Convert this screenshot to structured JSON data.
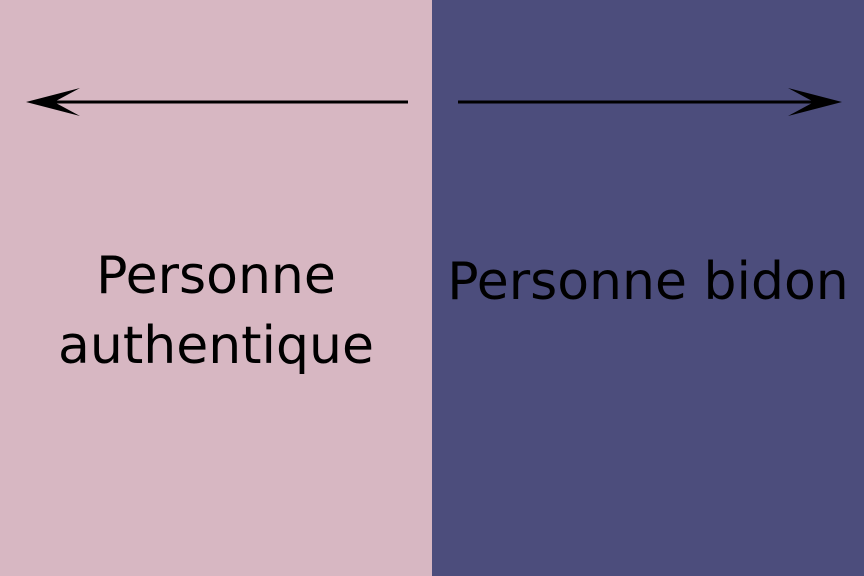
{
  "colors": {
    "left_panel": "#d7b7c2",
    "right_panel": "#4c4d7c",
    "text": "#000000",
    "arrow": "#000000"
  },
  "left": {
    "label": "Personne authentique",
    "arrow_direction": "left"
  },
  "right": {
    "label": "Personne bidon",
    "arrow_direction": "right"
  }
}
